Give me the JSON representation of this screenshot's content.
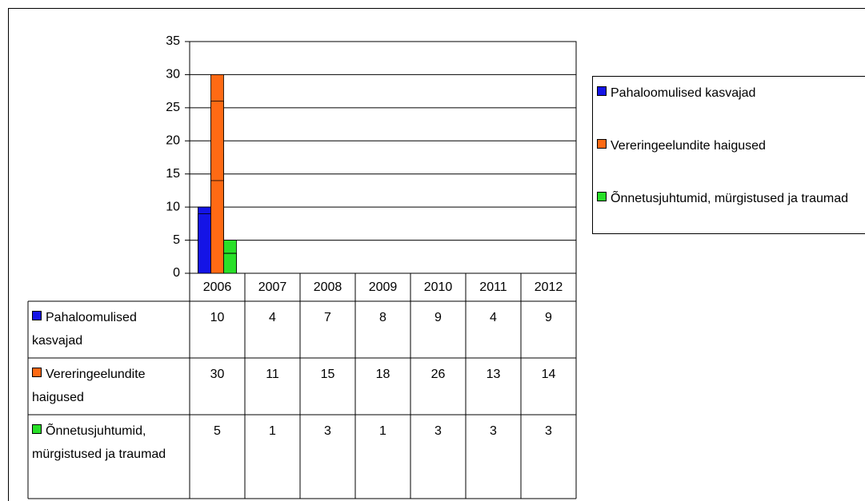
{
  "chart_data": {
    "type": "bar",
    "categories": [
      "2006",
      "2007",
      "2008",
      "2009",
      "2010",
      "2011",
      "2012"
    ],
    "series": [
      {
        "name": "Pahaloomulised kasvajad",
        "color": "#1414e6",
        "values": [
          10,
          4,
          7,
          8,
          9,
          4,
          9
        ]
      },
      {
        "name": "Vereringeelundite haigused",
        "color": "#ff6a14",
        "values": [
          30,
          11,
          15,
          18,
          26,
          13,
          14
        ]
      },
      {
        "name": "Õnnetusjuhtumid, mürgistused ja traumad",
        "color": "#28e028",
        "values": [
          5,
          1,
          3,
          1,
          3,
          3,
          3
        ]
      }
    ],
    "ylim": [
      0,
      35
    ],
    "yticks": [
      0,
      5,
      10,
      15,
      20,
      25,
      30,
      35
    ],
    "grid": true,
    "legend": "right"
  }
}
